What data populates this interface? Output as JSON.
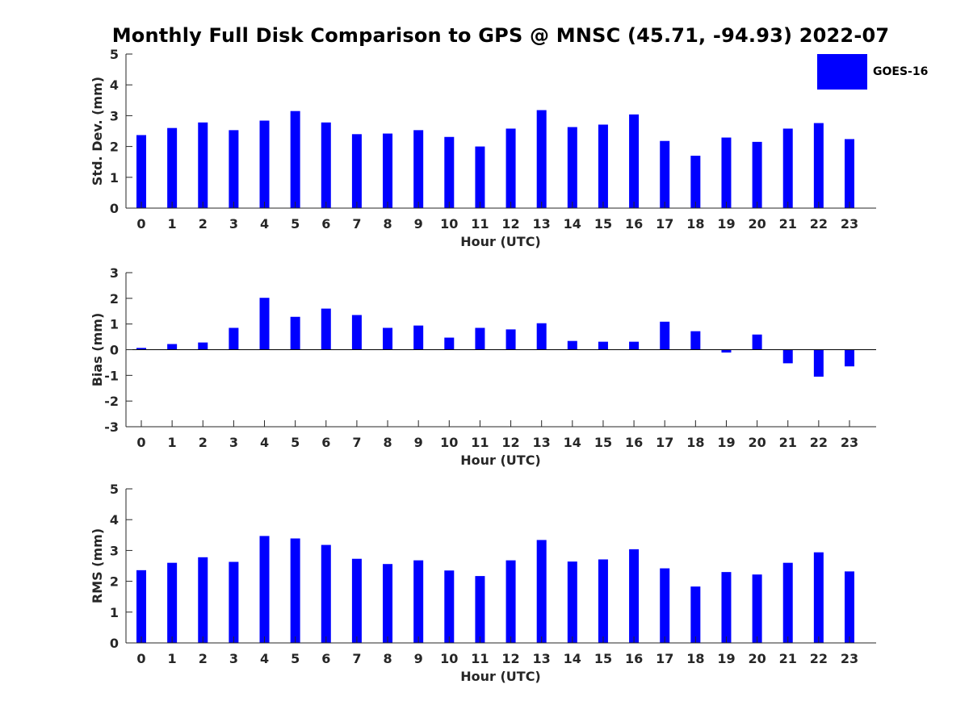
{
  "title": "Monthly Full Disk Comparison to GPS @ MNSC (45.71, -94.93) 2022-07",
  "legend": {
    "label": "GOES-16",
    "color": "#0000ff"
  },
  "bar_color": "#0000ff",
  "chart_data": [
    {
      "type": "bar",
      "name": "std-dev",
      "categories": [
        "0",
        "1",
        "2",
        "3",
        "4",
        "5",
        "6",
        "7",
        "8",
        "9",
        "10",
        "11",
        "12",
        "13",
        "14",
        "15",
        "16",
        "17",
        "18",
        "19",
        "20",
        "21",
        "22",
        "23"
      ],
      "values": [
        2.37,
        2.6,
        2.78,
        2.53,
        2.84,
        3.15,
        2.78,
        2.4,
        2.42,
        2.53,
        2.31,
        2.0,
        2.58,
        3.18,
        2.63,
        2.71,
        3.04,
        2.18,
        1.7,
        2.29,
        2.15,
        2.58,
        2.76,
        2.24
      ],
      "xlabel": "Hour (UTC)",
      "ylabel": "Std. Dev. (mm)",
      "ylim": [
        0,
        5
      ],
      "yticks": [
        "0",
        "1",
        "2",
        "3",
        "4",
        "5"
      ]
    },
    {
      "type": "bar",
      "name": "bias",
      "categories": [
        "0",
        "1",
        "2",
        "3",
        "4",
        "5",
        "6",
        "7",
        "8",
        "9",
        "10",
        "11",
        "12",
        "13",
        "14",
        "15",
        "16",
        "17",
        "18",
        "19",
        "20",
        "21",
        "22",
        "23"
      ],
      "values": [
        0.07,
        0.22,
        0.28,
        0.85,
        2.02,
        1.28,
        1.6,
        1.35,
        0.85,
        0.94,
        0.47,
        0.85,
        0.79,
        1.03,
        0.34,
        0.31,
        0.31,
        1.09,
        0.72,
        -0.11,
        0.59,
        -0.53,
        -1.05,
        -0.65
      ],
      "xlabel": "Hour (UTC)",
      "ylabel": "Bias (mm)",
      "ylim": [
        -3,
        3
      ],
      "yticks": [
        "-3",
        "-2",
        "-1",
        "0",
        "1",
        "2",
        "3"
      ]
    },
    {
      "type": "bar",
      "name": "rms",
      "categories": [
        "0",
        "1",
        "2",
        "3",
        "4",
        "5",
        "6",
        "7",
        "8",
        "9",
        "10",
        "11",
        "12",
        "13",
        "14",
        "15",
        "16",
        "17",
        "18",
        "19",
        "20",
        "21",
        "22",
        "23"
      ],
      "values": [
        2.36,
        2.6,
        2.78,
        2.63,
        3.47,
        3.39,
        3.18,
        2.73,
        2.56,
        2.68,
        2.35,
        2.17,
        2.68,
        3.34,
        2.64,
        2.71,
        3.04,
        2.42,
        1.83,
        2.3,
        2.22,
        2.6,
        2.94,
        2.32
      ],
      "xlabel": "Hour (UTC)",
      "ylabel": "RMS (mm)",
      "ylim": [
        0,
        5
      ],
      "yticks": [
        "0",
        "1",
        "2",
        "3",
        "4",
        "5"
      ]
    }
  ]
}
